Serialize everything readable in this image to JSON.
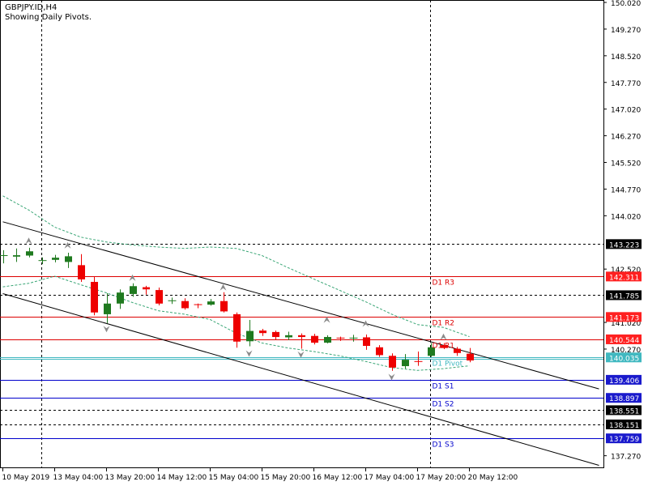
{
  "header": {
    "symbol": "GBPJPY.ID,H4",
    "subtitle": "Showing Daily Pivots."
  },
  "colors": {
    "bull_candle": "#1f7a1f",
    "bear_candle": "#ee0000",
    "resistance_line": "#dd0000",
    "support_line": "#0000cc",
    "pivot_line": "#40b8c0",
    "envelope": "#3aa676",
    "channel": "#000000",
    "grid": "#000000",
    "fractal": "#8a8a8a"
  },
  "chart_data": {
    "type": "candlestick",
    "title": "",
    "ylim": [
      136.9,
      150.02
    ],
    "x_ticks": [
      "10 May 2019",
      "13 May 04:00",
      "13 May 20:00",
      "14 May 12:00",
      "15 May 04:00",
      "15 May 20:00",
      "16 May 12:00",
      "17 May 04:00",
      "17 May 20:00",
      "20 May 12:00"
    ],
    "y_ticks": [
      "150.020",
      "149.270",
      "148.520",
      "147.770",
      "147.020",
      "146.270",
      "145.520",
      "144.770",
      "144.020",
      "142.520",
      "141.020",
      "140.270",
      "137.270"
    ],
    "price_marks": [
      {
        "text": "143.223",
        "value": 143.223,
        "style": "black"
      },
      {
        "text": "142.311",
        "value": 142.311,
        "style": "red"
      },
      {
        "text": "141.785",
        "value": 141.785,
        "style": "black"
      },
      {
        "text": "141.173",
        "value": 141.173,
        "style": "red"
      },
      {
        "text": "140.544",
        "value": 140.544,
        "style": "red"
      },
      {
        "text": "140.035",
        "value": 140.035,
        "style": "cyan"
      },
      {
        "text": "139.406",
        "value": 139.406,
        "style": "blue"
      },
      {
        "text": "138.897",
        "value": 138.897,
        "style": "blue"
      },
      {
        "text": "138.551",
        "value": 138.551,
        "style": "black"
      },
      {
        "text": "138.151",
        "value": 138.151,
        "style": "black"
      },
      {
        "text": "137.759",
        "value": 137.759,
        "style": "blue"
      }
    ],
    "pivots": [
      {
        "label": "D1 R3",
        "value": 142.311,
        "kind": "resistance"
      },
      {
        "label": "D1 R2",
        "value": 141.173,
        "kind": "resistance"
      },
      {
        "label": "D1 R1",
        "value": 140.544,
        "kind": "resistance"
      },
      {
        "label": "D1 Pivot",
        "value": 140.035,
        "kind": "pivot"
      },
      {
        "label": "D1 S1",
        "value": 139.406,
        "kind": "support"
      },
      {
        "label": "D1 S2",
        "value": 138.897,
        "kind": "support"
      },
      {
        "label": "D1 S3",
        "value": 137.759,
        "kind": "support"
      }
    ],
    "horizontal_levels": [
      143.223,
      141.785,
      138.551,
      138.151
    ],
    "channel_lines": [
      {
        "from": [
          0,
          143.85
        ],
        "to": [
          46,
          139.15
        ]
      },
      {
        "from": [
          0,
          141.83
        ],
        "to": [
          46,
          137.0
        ]
      }
    ],
    "session_separators": [
      3,
      33
    ],
    "candles": [
      {
        "o": 142.88,
        "h": 143.05,
        "l": 142.68,
        "c": 142.9
      },
      {
        "o": 142.87,
        "h": 143.1,
        "l": 142.72,
        "c": 142.91
      },
      {
        "o": 142.9,
        "h": 143.12,
        "l": 142.85,
        "c": 143.02
      },
      {
        "o": 142.74,
        "h": 142.85,
        "l": 142.66,
        "c": 142.76
      },
      {
        "o": 142.78,
        "h": 142.92,
        "l": 142.71,
        "c": 142.84
      },
      {
        "o": 142.72,
        "h": 142.98,
        "l": 142.55,
        "c": 142.88
      },
      {
        "o": 142.63,
        "h": 142.94,
        "l": 142.16,
        "c": 142.23
      },
      {
        "o": 142.16,
        "h": 142.3,
        "l": 141.22,
        "c": 141.3
      },
      {
        "o": 141.25,
        "h": 141.84,
        "l": 141.0,
        "c": 141.55
      },
      {
        "o": 141.55,
        "h": 141.95,
        "l": 141.4,
        "c": 141.86
      },
      {
        "o": 141.82,
        "h": 142.12,
        "l": 141.74,
        "c": 142.04
      },
      {
        "o": 142.01,
        "h": 142.05,
        "l": 141.8,
        "c": 141.95
      },
      {
        "o": 141.93,
        "h": 142.0,
        "l": 141.5,
        "c": 141.55
      },
      {
        "o": 141.6,
        "h": 141.72,
        "l": 141.54,
        "c": 141.63
      },
      {
        "o": 141.62,
        "h": 141.7,
        "l": 141.38,
        "c": 141.42
      },
      {
        "o": 141.52,
        "h": 141.55,
        "l": 141.42,
        "c": 141.5
      },
      {
        "o": 141.52,
        "h": 141.68,
        "l": 141.49,
        "c": 141.61
      },
      {
        "o": 141.62,
        "h": 141.87,
        "l": 141.3,
        "c": 141.33
      },
      {
        "o": 141.25,
        "h": 141.3,
        "l": 140.31,
        "c": 140.48
      },
      {
        "o": 140.49,
        "h": 141.09,
        "l": 140.35,
        "c": 140.78
      },
      {
        "o": 140.79,
        "h": 140.84,
        "l": 140.64,
        "c": 140.72
      },
      {
        "o": 140.75,
        "h": 140.79,
        "l": 140.54,
        "c": 140.61
      },
      {
        "o": 140.6,
        "h": 140.76,
        "l": 140.52,
        "c": 140.66
      },
      {
        "o": 140.66,
        "h": 140.71,
        "l": 140.28,
        "c": 140.61
      },
      {
        "o": 140.64,
        "h": 140.7,
        "l": 140.4,
        "c": 140.45
      },
      {
        "o": 140.45,
        "h": 140.66,
        "l": 140.43,
        "c": 140.61
      },
      {
        "o": 140.58,
        "h": 140.62,
        "l": 140.5,
        "c": 140.55
      },
      {
        "o": 140.56,
        "h": 140.67,
        "l": 140.48,
        "c": 140.58
      },
      {
        "o": 140.6,
        "h": 140.68,
        "l": 140.25,
        "c": 140.36
      },
      {
        "o": 140.32,
        "h": 140.38,
        "l": 140.05,
        "c": 140.1
      },
      {
        "o": 140.08,
        "h": 140.15,
        "l": 139.66,
        "c": 139.75
      },
      {
        "o": 139.79,
        "h": 140.13,
        "l": 139.72,
        "c": 139.97
      },
      {
        "o": 139.92,
        "h": 140.2,
        "l": 139.8,
        "c": 139.9
      },
      {
        "o": 140.08,
        "h": 140.44,
        "l": 140.05,
        "c": 140.32
      },
      {
        "o": 140.38,
        "h": 140.44,
        "l": 140.27,
        "c": 140.3
      },
      {
        "o": 140.28,
        "h": 140.33,
        "l": 140.08,
        "c": 140.16
      },
      {
        "o": 140.14,
        "h": 140.3,
        "l": 139.9,
        "c": 139.95
      }
    ],
    "envelope_upper": [
      [
        0,
        144.58
      ],
      [
        2,
        144.18
      ],
      [
        4,
        143.7
      ],
      [
        6,
        143.42
      ],
      [
        8,
        143.28
      ],
      [
        10,
        143.2
      ],
      [
        12,
        143.14
      ],
      [
        14,
        143.1
      ],
      [
        16,
        143.14
      ],
      [
        18,
        143.1
      ],
      [
        20,
        142.9
      ],
      [
        22,
        142.56
      ],
      [
        24,
        142.24
      ],
      [
        26,
        141.92
      ],
      [
        28,
        141.6
      ],
      [
        30,
        141.25
      ],
      [
        32,
        140.96
      ],
      [
        34,
        140.88
      ],
      [
        36,
        140.62
      ]
    ],
    "envelope_lower": [
      [
        0,
        142.02
      ],
      [
        2,
        142.12
      ],
      [
        4,
        142.32
      ],
      [
        6,
        142.08
      ],
      [
        8,
        141.85
      ],
      [
        10,
        141.58
      ],
      [
        12,
        141.35
      ],
      [
        14,
        141.25
      ],
      [
        16,
        141.1
      ],
      [
        18,
        140.72
      ],
      [
        20,
        140.44
      ],
      [
        22,
        140.3
      ],
      [
        24,
        140.2
      ],
      [
        26,
        140.08
      ],
      [
        28,
        139.92
      ],
      [
        30,
        139.75
      ],
      [
        32,
        139.67
      ],
      [
        34,
        139.72
      ],
      [
        36,
        139.8
      ]
    ],
    "fractals_up": [
      [
        2,
        143.18
      ],
      [
        5,
        143.05
      ],
      [
        10,
        142.14
      ],
      [
        17,
        141.87
      ],
      [
        25,
        140.96
      ],
      [
        28,
        140.85
      ],
      [
        34,
        140.48
      ]
    ],
    "fractals_down": [
      [
        8,
        140.97
      ],
      [
        19,
        140.28
      ],
      [
        23,
        140.25
      ],
      [
        30,
        139.62
      ]
    ]
  }
}
